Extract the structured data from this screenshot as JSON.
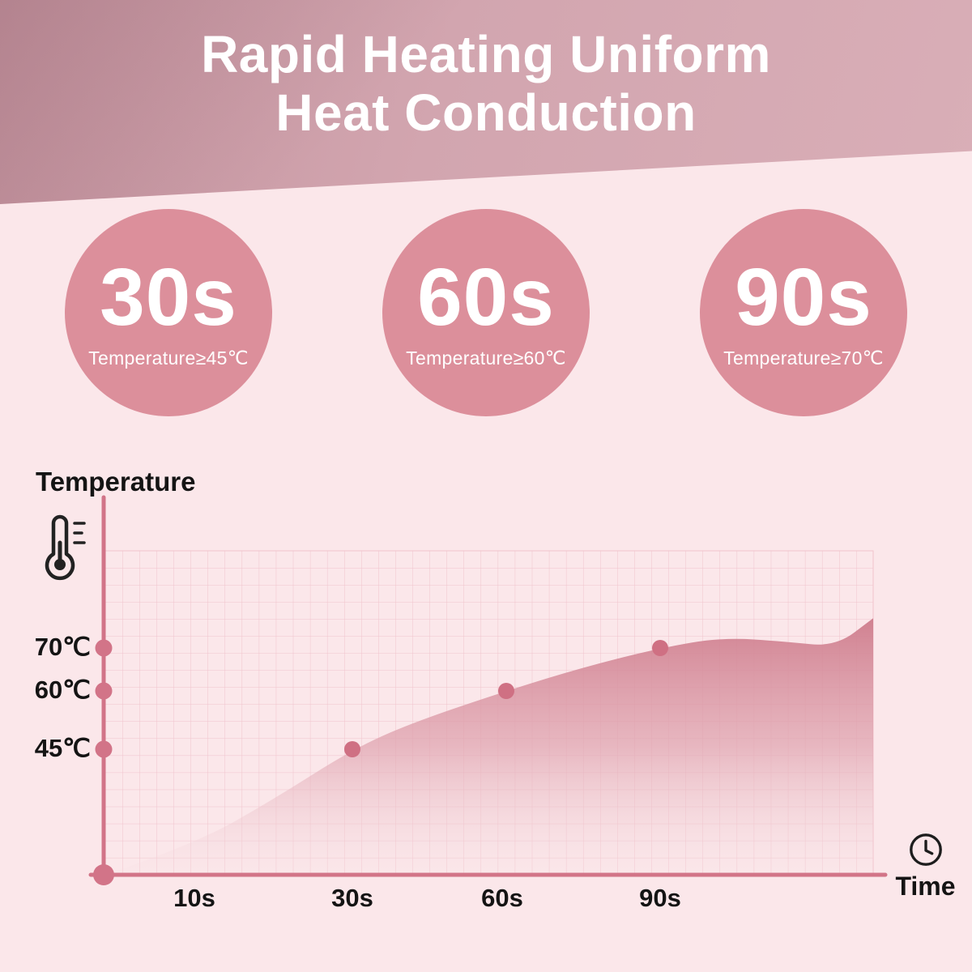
{
  "page": {
    "bg": "#fbe7ea",
    "accent": "#d27488",
    "circle_color": "#dc8f9b",
    "banner_color": "#d2a5af"
  },
  "header": {
    "title_line1": "Rapid Heating Uniform",
    "title_line2": "Heat Conduction"
  },
  "badges": [
    {
      "time": "30s",
      "caption": "Temperature≥45℃"
    },
    {
      "time": "60s",
      "caption": "Temperature≥60℃"
    },
    {
      "time": "90s",
      "caption": "Temperature≥70℃"
    }
  ],
  "icons": {
    "thermometer": "thermometer-icon",
    "clock": "clock-icon"
  },
  "chart_data": {
    "type": "area",
    "title": "",
    "xlabel": "Time",
    "ylabel": "Temperature",
    "grid": true,
    "x_ticks": [
      {
        "t": 10,
        "label": "10s"
      },
      {
        "t": 30,
        "label": "30s"
      },
      {
        "t": 60,
        "label": "60s"
      },
      {
        "t": 90,
        "label": "90s"
      }
    ],
    "y_ticks": [
      {
        "temp": 70,
        "label": "70℃"
      },
      {
        "temp": 60,
        "label": "60℃"
      },
      {
        "temp": 45,
        "label": "45℃"
      }
    ],
    "curve": [
      {
        "t": 0,
        "temp": 0
      },
      {
        "t": 10,
        "temp": 11
      },
      {
        "t": 20,
        "temp": 27
      },
      {
        "t": 30,
        "temp": 45
      },
      {
        "t": 42,
        "temp": 52
      },
      {
        "t": 60,
        "temp": 60
      },
      {
        "t": 75,
        "temp": 65.5
      },
      {
        "t": 90,
        "temp": 70
      },
      {
        "t": 100,
        "temp": 72.5
      },
      {
        "t": 110,
        "temp": 71.5
      },
      {
        "t": 118,
        "temp": 70.3
      },
      {
        "t": 124,
        "temp": 77
      }
    ],
    "marked_points": [
      {
        "t": 30,
        "temp": 45
      },
      {
        "t": 60,
        "temp": 60
      },
      {
        "t": 90,
        "temp": 70
      }
    ]
  }
}
